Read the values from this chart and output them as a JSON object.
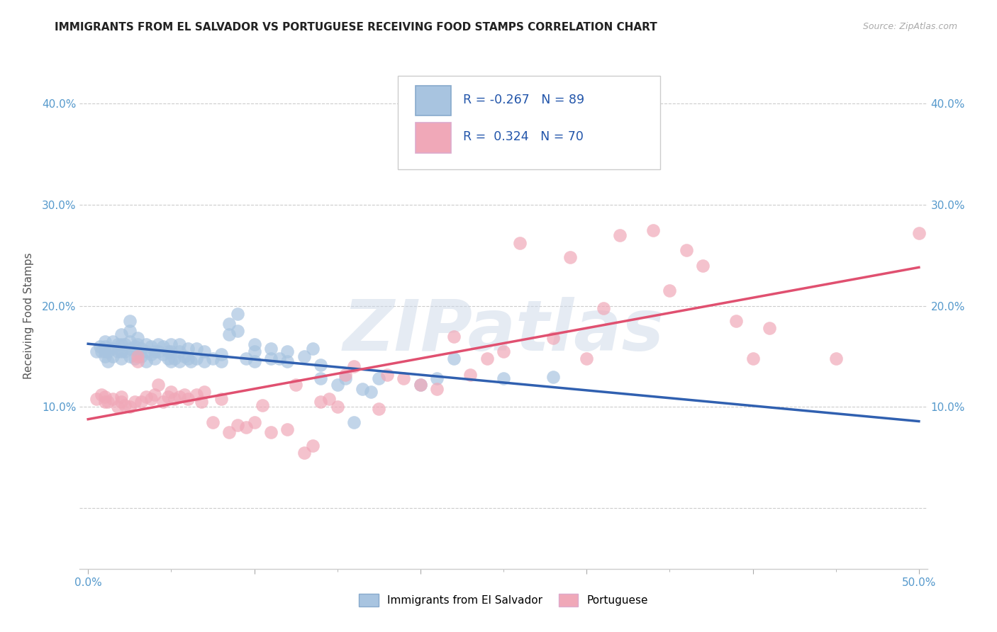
{
  "title": "IMMIGRANTS FROM EL SALVADOR VS PORTUGUESE RECEIVING FOOD STAMPS CORRELATION CHART",
  "source": "Source: ZipAtlas.com",
  "ylabel": "Receiving Food Stamps",
  "x_ticks": [
    0.0,
    0.1,
    0.2,
    0.3,
    0.4,
    0.5
  ],
  "x_tick_labels": [
    "0.0%",
    "",
    "",
    "",
    "",
    "50.0%"
  ],
  "y_ticks": [
    0.0,
    0.1,
    0.2,
    0.3,
    0.4
  ],
  "y_tick_labels": [
    "",
    "10.0%",
    "20.0%",
    "30.0%",
    "40.0%"
  ],
  "xlim": [
    -0.005,
    0.505
  ],
  "ylim": [
    -0.06,
    0.44
  ],
  "legend_entries": [
    "Immigrants from El Salvador",
    "Portuguese"
  ],
  "blue_R": -0.267,
  "blue_N": 89,
  "pink_R": 0.324,
  "pink_N": 70,
  "blue_color": "#a8c4e0",
  "pink_color": "#f0a8b8",
  "blue_line_color": "#3060b0",
  "pink_line_color": "#e05070",
  "watermark": "ZIPatlas",
  "blue_line_start": 0.17,
  "blue_line_end": 0.082,
  "pink_line_start": 0.122,
  "pink_line_end": 0.218,
  "blue_scatter": [
    [
      0.005,
      0.155
    ],
    [
      0.007,
      0.16
    ],
    [
      0.008,
      0.155
    ],
    [
      0.01,
      0.15
    ],
    [
      0.01,
      0.155
    ],
    [
      0.01,
      0.16
    ],
    [
      0.01,
      0.165
    ],
    [
      0.012,
      0.145
    ],
    [
      0.012,
      0.155
    ],
    [
      0.015,
      0.15
    ],
    [
      0.015,
      0.158
    ],
    [
      0.015,
      0.165
    ],
    [
      0.018,
      0.155
    ],
    [
      0.018,
      0.162
    ],
    [
      0.02,
      0.148
    ],
    [
      0.02,
      0.155
    ],
    [
      0.02,
      0.162
    ],
    [
      0.02,
      0.172
    ],
    [
      0.022,
      0.155
    ],
    [
      0.022,
      0.162
    ],
    [
      0.025,
      0.15
    ],
    [
      0.025,
      0.158
    ],
    [
      0.025,
      0.165
    ],
    [
      0.025,
      0.175
    ],
    [
      0.025,
      0.185
    ],
    [
      0.028,
      0.148
    ],
    [
      0.028,
      0.16
    ],
    [
      0.03,
      0.155
    ],
    [
      0.03,
      0.162
    ],
    [
      0.03,
      0.168
    ],
    [
      0.032,
      0.15
    ],
    [
      0.032,
      0.158
    ],
    [
      0.035,
      0.145
    ],
    [
      0.035,
      0.155
    ],
    [
      0.035,
      0.162
    ],
    [
      0.038,
      0.152
    ],
    [
      0.038,
      0.16
    ],
    [
      0.04,
      0.148
    ],
    [
      0.04,
      0.155
    ],
    [
      0.042,
      0.155
    ],
    [
      0.042,
      0.162
    ],
    [
      0.045,
      0.152
    ],
    [
      0.045,
      0.16
    ],
    [
      0.048,
      0.148
    ],
    [
      0.048,
      0.155
    ],
    [
      0.05,
      0.145
    ],
    [
      0.05,
      0.155
    ],
    [
      0.05,
      0.162
    ],
    [
      0.052,
      0.148
    ],
    [
      0.055,
      0.145
    ],
    [
      0.055,
      0.155
    ],
    [
      0.055,
      0.162
    ],
    [
      0.058,
      0.15
    ],
    [
      0.06,
      0.148
    ],
    [
      0.06,
      0.158
    ],
    [
      0.062,
      0.145
    ],
    [
      0.065,
      0.148
    ],
    [
      0.065,
      0.158
    ],
    [
      0.07,
      0.145
    ],
    [
      0.07,
      0.155
    ],
    [
      0.075,
      0.148
    ],
    [
      0.08,
      0.145
    ],
    [
      0.08,
      0.152
    ],
    [
      0.085,
      0.172
    ],
    [
      0.085,
      0.182
    ],
    [
      0.09,
      0.175
    ],
    [
      0.09,
      0.192
    ],
    [
      0.095,
      0.148
    ],
    [
      0.1,
      0.145
    ],
    [
      0.1,
      0.155
    ],
    [
      0.1,
      0.162
    ],
    [
      0.11,
      0.148
    ],
    [
      0.11,
      0.158
    ],
    [
      0.115,
      0.148
    ],
    [
      0.12,
      0.145
    ],
    [
      0.12,
      0.155
    ],
    [
      0.13,
      0.15
    ],
    [
      0.135,
      0.158
    ],
    [
      0.14,
      0.128
    ],
    [
      0.14,
      0.142
    ],
    [
      0.15,
      0.122
    ],
    [
      0.155,
      0.128
    ],
    [
      0.16,
      0.085
    ],
    [
      0.165,
      0.118
    ],
    [
      0.17,
      0.115
    ],
    [
      0.175,
      0.128
    ],
    [
      0.2,
      0.122
    ],
    [
      0.21,
      0.128
    ],
    [
      0.22,
      0.148
    ],
    [
      0.25,
      0.128
    ],
    [
      0.28,
      0.13
    ]
  ],
  "pink_scatter": [
    [
      0.005,
      0.108
    ],
    [
      0.008,
      0.112
    ],
    [
      0.01,
      0.105
    ],
    [
      0.01,
      0.11
    ],
    [
      0.012,
      0.105
    ],
    [
      0.015,
      0.108
    ],
    [
      0.018,
      0.1
    ],
    [
      0.02,
      0.105
    ],
    [
      0.02,
      0.11
    ],
    [
      0.022,
      0.102
    ],
    [
      0.025,
      0.1
    ],
    [
      0.028,
      0.105
    ],
    [
      0.03,
      0.145
    ],
    [
      0.03,
      0.15
    ],
    [
      0.032,
      0.105
    ],
    [
      0.035,
      0.11
    ],
    [
      0.038,
      0.108
    ],
    [
      0.04,
      0.112
    ],
    [
      0.042,
      0.122
    ],
    [
      0.045,
      0.105
    ],
    [
      0.048,
      0.11
    ],
    [
      0.05,
      0.115
    ],
    [
      0.052,
      0.108
    ],
    [
      0.055,
      0.11
    ],
    [
      0.058,
      0.112
    ],
    [
      0.06,
      0.108
    ],
    [
      0.065,
      0.112
    ],
    [
      0.068,
      0.105
    ],
    [
      0.07,
      0.115
    ],
    [
      0.075,
      0.085
    ],
    [
      0.08,
      0.108
    ],
    [
      0.085,
      0.075
    ],
    [
      0.09,
      0.082
    ],
    [
      0.095,
      0.08
    ],
    [
      0.1,
      0.085
    ],
    [
      0.105,
      0.102
    ],
    [
      0.11,
      0.075
    ],
    [
      0.12,
      0.078
    ],
    [
      0.125,
      0.122
    ],
    [
      0.13,
      0.055
    ],
    [
      0.135,
      0.062
    ],
    [
      0.14,
      0.105
    ],
    [
      0.145,
      0.108
    ],
    [
      0.15,
      0.1
    ],
    [
      0.155,
      0.132
    ],
    [
      0.16,
      0.14
    ],
    [
      0.175,
      0.098
    ],
    [
      0.18,
      0.132
    ],
    [
      0.19,
      0.128
    ],
    [
      0.2,
      0.122
    ],
    [
      0.21,
      0.118
    ],
    [
      0.22,
      0.17
    ],
    [
      0.23,
      0.132
    ],
    [
      0.24,
      0.148
    ],
    [
      0.25,
      0.155
    ],
    [
      0.26,
      0.262
    ],
    [
      0.28,
      0.168
    ],
    [
      0.29,
      0.248
    ],
    [
      0.3,
      0.148
    ],
    [
      0.31,
      0.198
    ],
    [
      0.32,
      0.27
    ],
    [
      0.34,
      0.275
    ],
    [
      0.35,
      0.215
    ],
    [
      0.36,
      0.255
    ],
    [
      0.37,
      0.24
    ],
    [
      0.39,
      0.185
    ],
    [
      0.4,
      0.148
    ],
    [
      0.41,
      0.178
    ],
    [
      0.45,
      0.148
    ],
    [
      0.5,
      0.272
    ]
  ]
}
